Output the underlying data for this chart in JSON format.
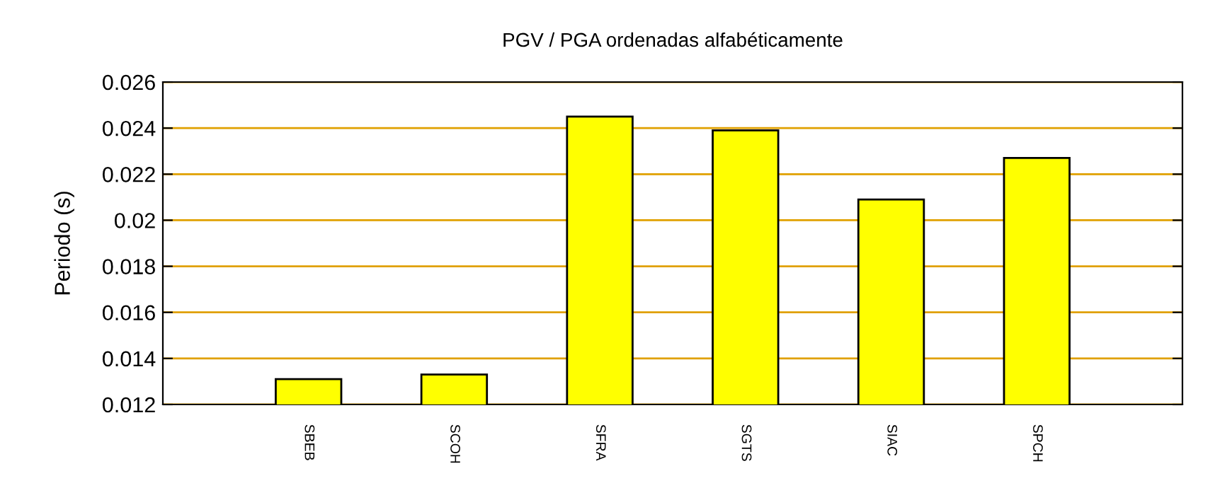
{
  "chart_data": {
    "type": "bar",
    "title": "PGV / PGA ordenadas alfabéticamente",
    "ylabel": "Periodo (s)",
    "categories": [
      "SBEB",
      "SCOH",
      "SFRA",
      "SGTS",
      "SIAC",
      "SPCH"
    ],
    "values": [
      0.0131,
      0.0133,
      0.0245,
      0.0239,
      0.0209,
      0.0227
    ],
    "color": "#ffff00",
    "ylim": [
      0.012,
      0.026
    ],
    "yticks": [
      0.012,
      0.014,
      0.016,
      0.018,
      0.02,
      0.022,
      0.024,
      0.026
    ],
    "grid": "y",
    "legend": false
  }
}
